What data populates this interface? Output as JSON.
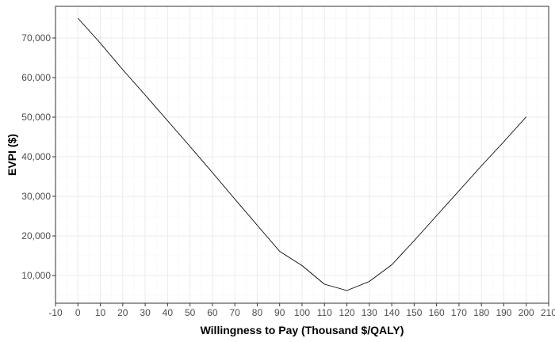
{
  "chart_data": {
    "type": "line",
    "title": "",
    "xlabel": "Willingness to Pay (Thousand $/QALY)",
    "ylabel": "EVPI ($)",
    "xlim": [
      -10,
      210
    ],
    "ylim": [
      3000,
      78000
    ],
    "x_ticks": [
      -10,
      0,
      10,
      20,
      30,
      40,
      50,
      60,
      70,
      80,
      90,
      100,
      110,
      120,
      130,
      140,
      150,
      160,
      170,
      180,
      190,
      200,
      210
    ],
    "x_tick_labels": [
      "-10",
      "0",
      "10",
      "20",
      "30",
      "40",
      "50",
      "60",
      "70",
      "80",
      "90",
      "100",
      "110",
      "120",
      "130",
      "140",
      "150",
      "160",
      "170",
      "180",
      "190",
      "200",
      "210"
    ],
    "y_ticks": [
      10000,
      20000,
      30000,
      40000,
      50000,
      60000,
      70000
    ],
    "y_tick_labels": [
      "10,000",
      "20,000",
      "30,000",
      "40,000",
      "50,000",
      "60,000",
      "70,000"
    ],
    "grid": true,
    "legend": "none",
    "series": [
      {
        "x": [
          0,
          10,
          20,
          30,
          40,
          50,
          60,
          70,
          80,
          90,
          100,
          110,
          120,
          130,
          140,
          150,
          160,
          170,
          180,
          190,
          200
        ],
        "values": [
          75000,
          68700,
          62000,
          55600,
          49100,
          42600,
          36000,
          29300,
          22700,
          16100,
          12500,
          7800,
          6200,
          8500,
          12700,
          18800,
          25100,
          31400,
          37700,
          43800,
          50100
        ],
        "color": "#000000"
      }
    ]
  },
  "colors": {
    "panel_border": "#333333",
    "grid_major": "#ebebeb",
    "grid_minor": "#f5f5f5",
    "line": "#000000"
  }
}
